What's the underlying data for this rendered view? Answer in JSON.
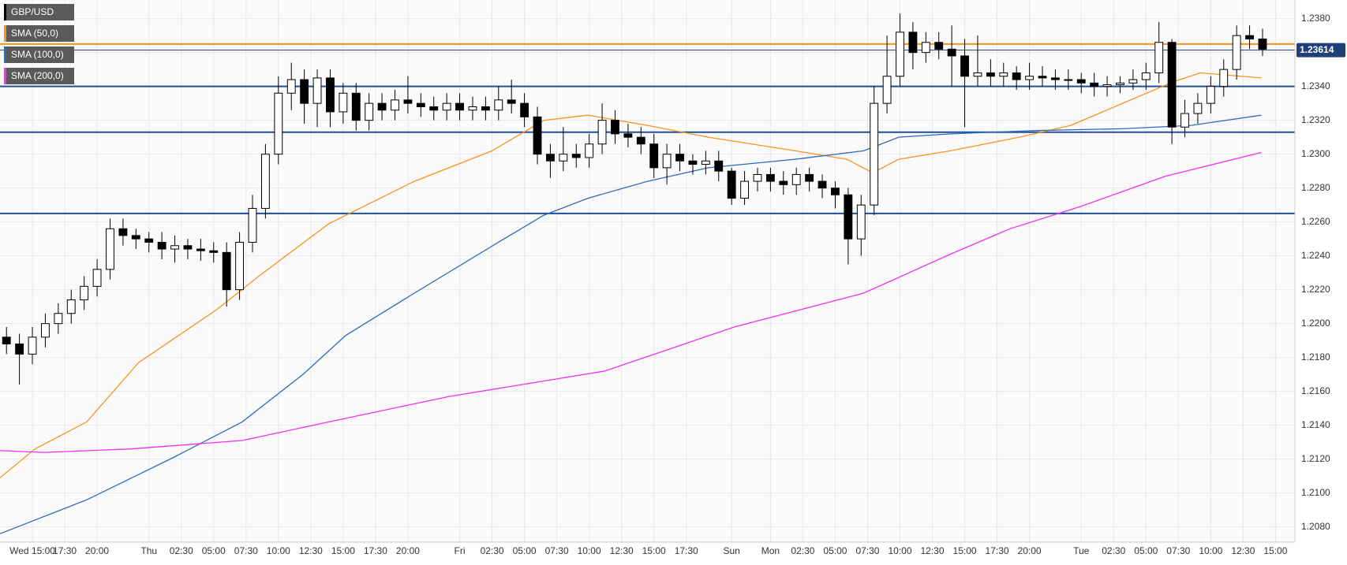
{
  "chart_data": {
    "type": "candlestick",
    "xlim": [
      -2.5,
      97.5
    ],
    "ylim": [
      1.2071,
      1.2391
    ],
    "xticks": [
      {
        "value": 0,
        "label": "Wed 15:00"
      },
      {
        "value": 2.5,
        "label": "17:30"
      },
      {
        "value": 5,
        "label": "20:00"
      },
      {
        "value": 9,
        "label": "Thu"
      },
      {
        "value": 11.5,
        "label": "02:30"
      },
      {
        "value": 14,
        "label": "05:00"
      },
      {
        "value": 16.5,
        "label": "07:30"
      },
      {
        "value": 19,
        "label": "10:00"
      },
      {
        "value": 21.5,
        "label": "12:30"
      },
      {
        "value": 24,
        "label": "15:00"
      },
      {
        "value": 26.5,
        "label": "17:30"
      },
      {
        "value": 29,
        "label": "20:00"
      },
      {
        "value": 33,
        "label": "Fri"
      },
      {
        "value": 35.5,
        "label": "02:30"
      },
      {
        "value": 38,
        "label": "05:00"
      },
      {
        "value": 40.5,
        "label": "07:30"
      },
      {
        "value": 43,
        "label": "10:00"
      },
      {
        "value": 45.5,
        "label": "12:30"
      },
      {
        "value": 48,
        "label": "15:00"
      },
      {
        "value": 50.5,
        "label": "17:30"
      },
      {
        "value": 54,
        "label": "Sun"
      },
      {
        "value": 57,
        "label": "Mon"
      },
      {
        "value": 59.5,
        "label": "02:30"
      },
      {
        "value": 62,
        "label": "05:00"
      },
      {
        "value": 64.5,
        "label": "07:30"
      },
      {
        "value": 67,
        "label": "10:00"
      },
      {
        "value": 69.5,
        "label": "12:30"
      },
      {
        "value": 72,
        "label": "15:00"
      },
      {
        "value": 74.5,
        "label": "17:30"
      },
      {
        "value": 77,
        "label": "20:00"
      },
      {
        "value": 81,
        "label": "Tue"
      },
      {
        "value": 83.5,
        "label": "02:30"
      },
      {
        "value": 86,
        "label": "05:00"
      },
      {
        "value": 88.5,
        "label": "07:30"
      },
      {
        "value": 91,
        "label": "10:00"
      },
      {
        "value": 93.5,
        "label": "12:30"
      },
      {
        "value": 96,
        "label": "15:00"
      }
    ],
    "yticks": [
      {
        "value": 1.208,
        "label": "1.2080"
      },
      {
        "value": 1.21,
        "label": "1.2100"
      },
      {
        "value": 1.212,
        "label": "1.2120"
      },
      {
        "value": 1.214,
        "label": "1.2140"
      },
      {
        "value": 1.216,
        "label": "1.2160"
      },
      {
        "value": 1.218,
        "label": "1.2180"
      },
      {
        "value": 1.22,
        "label": "1.2200"
      },
      {
        "value": 1.222,
        "label": "1.2220"
      },
      {
        "value": 1.224,
        "label": "1.2240"
      },
      {
        "value": 1.226,
        "label": "1.2260"
      },
      {
        "value": 1.228,
        "label": "1.2280"
      },
      {
        "value": 1.23,
        "label": "1.2300"
      },
      {
        "value": 1.232,
        "label": "1.2320"
      },
      {
        "value": 1.234,
        "label": "1.2340"
      },
      {
        "value": 1.236,
        "label": "1.2360"
      },
      {
        "value": 1.238,
        "label": "1.2380"
      }
    ],
    "grid": true,
    "candles": {
      "name": "GBP/USD",
      "color": "#000000",
      "x": [
        -2,
        -1,
        0,
        1,
        2,
        3,
        4,
        5,
        6,
        7,
        8,
        9,
        10,
        11,
        12,
        13,
        14,
        15,
        16,
        17,
        18,
        19,
        20,
        21,
        22,
        23,
        24,
        25,
        26,
        27,
        28,
        29,
        30,
        31,
        32,
        33,
        34,
        35,
        36,
        37,
        38,
        39,
        40,
        41,
        42,
        43,
        44,
        45,
        46,
        47,
        48,
        49,
        50,
        51,
        52,
        53,
        54,
        55,
        56,
        57,
        58,
        59,
        60,
        61,
        62,
        63,
        64,
        65,
        66,
        67,
        68,
        69,
        70,
        71,
        72,
        73,
        74,
        75,
        76,
        77,
        78,
        79,
        80,
        81,
        82,
        83,
        84,
        85,
        86,
        87,
        88,
        89,
        90,
        91,
        92,
        93,
        94,
        95
      ],
      "open": [
        1.2192,
        1.2188,
        1.2182,
        1.2192,
        1.22,
        1.2206,
        1.2214,
        1.2222,
        1.2232,
        1.2256,
        1.2252,
        1.225,
        1.2248,
        1.2244,
        1.2246,
        1.2244,
        1.2243,
        1.2242,
        1.222,
        1.2248,
        1.2268,
        1.23,
        1.2336,
        1.2344,
        1.233,
        1.2345,
        1.2325,
        1.2336,
        1.232,
        1.233,
        1.2326,
        1.2332,
        1.233,
        1.2328,
        1.2326,
        1.233,
        1.2326,
        1.2328,
        1.2326,
        1.2332,
        1.233,
        1.2322,
        1.23,
        1.2296,
        1.23,
        1.2298,
        1.2306,
        1.232,
        1.2312,
        1.231,
        1.2306,
        1.2292,
        1.23,
        1.2296,
        1.2294,
        1.2296,
        1.229,
        1.2274,
        1.2284,
        1.2288,
        1.2284,
        1.2282,
        1.2288,
        1.2284,
        1.228,
        1.2276,
        1.225,
        1.227,
        1.233,
        1.2346,
        1.2372,
        1.236,
        1.2366,
        1.2362,
        1.2358,
        1.2346,
        1.2348,
        1.2346,
        1.2348,
        1.2344,
        1.2346,
        1.2345,
        1.2344,
        1.2344,
        1.2342,
        1.234,
        1.2341,
        1.2342,
        1.2344,
        1.2348,
        1.2366,
        1.2316,
        1.2324,
        1.233,
        1.234,
        1.235,
        1.237,
        1.2368
      ],
      "high": [
        1.2198,
        1.2194,
        1.2198,
        1.2206,
        1.2212,
        1.222,
        1.2228,
        1.2238,
        1.2262,
        1.2262,
        1.2256,
        1.2254,
        1.2254,
        1.2252,
        1.225,
        1.225,
        1.2248,
        1.2248,
        1.2254,
        1.2276,
        1.2306,
        1.2346,
        1.2354,
        1.235,
        1.235,
        1.235,
        1.2342,
        1.2342,
        1.2336,
        1.2336,
        1.2338,
        1.2346,
        1.2336,
        1.2334,
        1.2336,
        1.2336,
        1.2334,
        1.2334,
        1.234,
        1.2344,
        1.2336,
        1.2328,
        1.2306,
        1.2316,
        1.2306,
        1.2312,
        1.233,
        1.2326,
        1.2318,
        1.2316,
        1.2312,
        1.2306,
        1.2306,
        1.23,
        1.2302,
        1.2302,
        1.2292,
        1.229,
        1.2292,
        1.2292,
        1.229,
        1.2292,
        1.2292,
        1.2288,
        1.2284,
        1.228,
        1.2276,
        1.234,
        1.237,
        1.2383,
        1.2378,
        1.2372,
        1.2372,
        1.2376,
        1.2368,
        1.237,
        1.2356,
        1.2354,
        1.2352,
        1.2354,
        1.2352,
        1.235,
        1.235,
        1.2348,
        1.2348,
        1.2346,
        1.2346,
        1.235,
        1.2354,
        1.2378,
        1.2368,
        1.2332,
        1.2336,
        1.2346,
        1.2356,
        1.2376,
        1.2376,
        1.2374
      ],
      "low": [
        1.2182,
        1.2164,
        1.2176,
        1.2186,
        1.2194,
        1.22,
        1.2208,
        1.2216,
        1.2226,
        1.2246,
        1.2244,
        1.2242,
        1.2238,
        1.2236,
        1.2238,
        1.2237,
        1.2236,
        1.221,
        1.2214,
        1.2242,
        1.2262,
        1.2294,
        1.2326,
        1.2318,
        1.2316,
        1.2316,
        1.2318,
        1.2314,
        1.2314,
        1.232,
        1.232,
        1.2324,
        1.2322,
        1.232,
        1.232,
        1.232,
        1.232,
        1.232,
        1.232,
        1.2324,
        1.2316,
        1.2294,
        1.2286,
        1.229,
        1.2292,
        1.2292,
        1.23,
        1.2306,
        1.2304,
        1.23,
        1.2286,
        1.2282,
        1.229,
        1.2288,
        1.2288,
        1.2284,
        1.227,
        1.227,
        1.2278,
        1.2278,
        1.2276,
        1.2276,
        1.2278,
        1.2274,
        1.2268,
        1.2235,
        1.224,
        1.2264,
        1.2324,
        1.234,
        1.235,
        1.2354,
        1.2356,
        1.234,
        1.2316,
        1.234,
        1.234,
        1.234,
        1.2338,
        1.2338,
        1.234,
        1.2338,
        1.2338,
        1.2336,
        1.2334,
        1.2334,
        1.2336,
        1.2338,
        1.2338,
        1.2342,
        1.2306,
        1.231,
        1.2318,
        1.2324,
        1.2334,
        1.2344,
        1.2362,
        1.2358
      ],
      "close": [
        1.2188,
        1.2182,
        1.2192,
        1.22,
        1.2206,
        1.2214,
        1.2222,
        1.2232,
        1.2256,
        1.2252,
        1.225,
        1.2248,
        1.2244,
        1.2246,
        1.2244,
        1.2243,
        1.2242,
        1.222,
        1.2248,
        1.2268,
        1.23,
        1.2336,
        1.2344,
        1.233,
        1.2345,
        1.2325,
        1.2336,
        1.232,
        1.233,
        1.2326,
        1.2332,
        1.233,
        1.2328,
        1.2326,
        1.233,
        1.2326,
        1.2328,
        1.2326,
        1.2332,
        1.233,
        1.2322,
        1.23,
        1.2296,
        1.23,
        1.2298,
        1.2306,
        1.232,
        1.2312,
        1.231,
        1.2306,
        1.2292,
        1.23,
        1.2296,
        1.2294,
        1.2296,
        1.229,
        1.2274,
        1.2284,
        1.2288,
        1.2284,
        1.2282,
        1.2288,
        1.2284,
        1.228,
        1.2276,
        1.225,
        1.227,
        1.233,
        1.2346,
        1.2372,
        1.236,
        1.2366,
        1.2362,
        1.2358,
        1.2346,
        1.2348,
        1.2346,
        1.2348,
        1.2344,
        1.2346,
        1.2345,
        1.2344,
        1.2344,
        1.2342,
        1.234,
        1.2341,
        1.2342,
        1.2344,
        1.2348,
        1.2366,
        1.2316,
        1.2324,
        1.233,
        1.234,
        1.235,
        1.237,
        1.2368,
        1.2362
      ]
    },
    "series": [
      {
        "name": "SMA (50,0)",
        "color": "#f7931e",
        "x": [
          -2.5,
          0.2,
          4.2,
          8.2,
          14.2,
          17.5,
          22.9,
          29.5,
          35.5,
          39.5,
          42.9,
          47.5,
          52.2,
          58.9,
          62.9,
          64.9,
          66.9,
          70.9,
          76.2,
          80.2,
          84.2,
          88.2,
          90.2,
          94.9
        ],
        "values": [
          1.2109,
          1.2126,
          1.2142,
          1.2177,
          1.2208,
          1.2228,
          1.2259,
          1.2284,
          1.2302,
          1.232,
          1.2323,
          1.2317,
          1.231,
          1.2302,
          1.2297,
          1.2289,
          1.2297,
          1.2302,
          1.231,
          1.2317,
          1.233,
          1.2343,
          1.2348,
          1.2345
        ]
      },
      {
        "name": "SMA (100,0)",
        "color": "#2e6bb8",
        "x": [
          -2.5,
          4.2,
          10.9,
          16.2,
          20.9,
          24.2,
          29.5,
          36.2,
          39.5,
          42.9,
          47.5,
          52.2,
          58.9,
          64.2,
          66.9,
          70.9,
          77.5,
          84.2,
          89.5,
          94.9
        ],
        "values": [
          1.2076,
          1.2096,
          1.2121,
          1.2142,
          1.217,
          1.2193,
          1.2218,
          1.2249,
          1.2264,
          1.2274,
          1.2284,
          1.2292,
          1.2297,
          1.2302,
          1.231,
          1.2312,
          1.2314,
          1.2315,
          1.2317,
          1.2323
        ]
      },
      {
        "name": "SMA (200,0)",
        "color": "#f02ff0",
        "x": [
          -2.5,
          0.9,
          7.5,
          16.2,
          22.9,
          32.2,
          44.2,
          54.2,
          64.2,
          70.9,
          75.5,
          80.9,
          87.5,
          94.9
        ],
        "values": [
          1.2125,
          1.2124,
          1.2126,
          1.2131,
          1.2142,
          1.2157,
          1.2172,
          1.2198,
          1.2218,
          1.2241,
          1.2256,
          1.2269,
          1.2287,
          1.2301
        ]
      }
    ],
    "levels": [
      {
        "value": 1.2365,
        "color": "#f7931e"
      },
      {
        "value": 1.234,
        "color": "#1f4f99"
      },
      {
        "value": 1.2313,
        "color": "#1f4f99"
      },
      {
        "value": 1.2265,
        "color": "#1f4f99"
      }
    ],
    "last_price": 1.23614
  }
}
